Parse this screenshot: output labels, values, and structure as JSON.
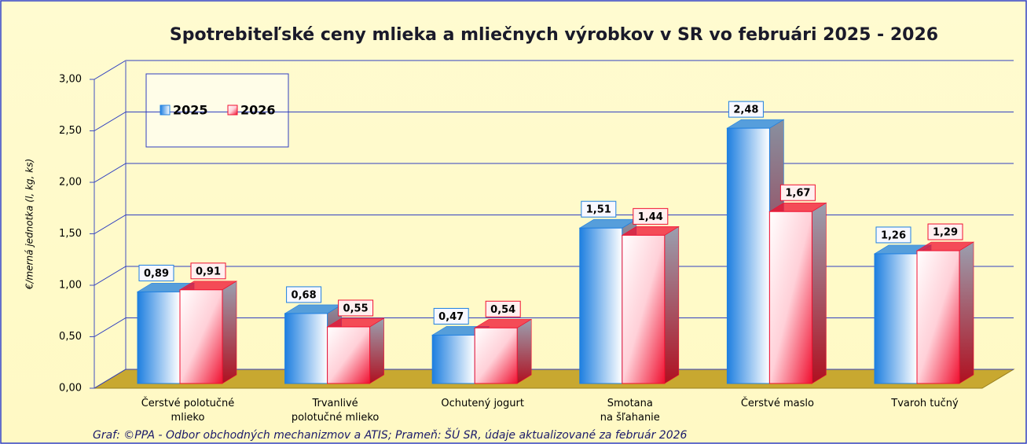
{
  "chart_data": {
    "type": "bar3d",
    "title": "Spotrebiteľské ceny mlieka a mliečnych výrobkov v SR vo februári 2025 - 2026",
    "y_label": "€/merná jednotka (l, kg, ks)",
    "footer": "Graf: ©PPA - Odbor obchodných mechanizmov a ATIS; Prameň: ŠÚ SR, údaje aktualizované za február 2026",
    "categories": [
      "Čerstvé polotučné\nmlieko",
      "Trvanlivé\npolotučné mlieko",
      "Ochutený jogurt",
      "Smotana\nna šľahanie",
      "Čerstvé maslo",
      "Tvaroh tučný"
    ],
    "series": [
      {
        "name": "2025",
        "color": "#1e7fe0",
        "values": [
          0.89,
          0.68,
          0.47,
          1.51,
          2.48,
          1.26
        ],
        "value_labels": [
          "0,89",
          "0,68",
          "0,47",
          "1,51",
          "2,48",
          "1,26"
        ]
      },
      {
        "name": "2026",
        "color": "#f01030",
        "values": [
          0.91,
          0.55,
          0.54,
          1.44,
          1.67,
          1.29
        ],
        "value_labels": [
          "0,91",
          "0,55",
          "0,54",
          "1,44",
          "1,67",
          "1,29"
        ]
      }
    ],
    "ylim": [
      0,
      3
    ],
    "yticks": [
      {
        "value": 0,
        "label": "0,00"
      },
      {
        "value": 0.5,
        "label": "0,50"
      },
      {
        "value": 1,
        "label": "1,00"
      },
      {
        "value": 1.5,
        "label": "1,50"
      },
      {
        "value": 2,
        "label": "2,00"
      },
      {
        "value": 2.5,
        "label": "2,50"
      },
      {
        "value": 3,
        "label": "3,00"
      }
    ],
    "grid": true,
    "legend": "upper left"
  }
}
